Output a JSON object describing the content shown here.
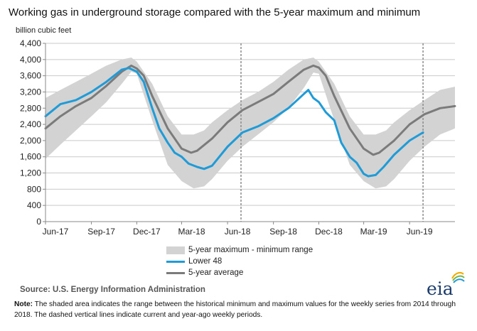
{
  "title": "Working gas in underground  storage compared with the 5-year maximum and minimum",
  "source": "Source:  U.S. Energy Information Administration",
  "note_label": "Note:",
  "note_text": " The shaded area indicates the range between the historical minimum and maximum values for the weekly series from 2014 through 2018. The dashed vertical lines indicate current and year-ago weekly periods.",
  "logo_text": "eia",
  "colors": {
    "band": "#d3d3d3",
    "lower48": "#1f9bd7",
    "average": "#7b7b7b",
    "grid": "#c9c9c9",
    "axis": "#8a8a8a"
  },
  "chart_data": {
    "type": "area",
    "title": "Working gas in underground  storage compared with the 5-year maximum and minimum",
    "ylabel": "billion cubic feet",
    "xlabel": "",
    "ylim": [
      0,
      4400
    ],
    "yticks": [
      0,
      400,
      800,
      1200,
      1600,
      2000,
      2400,
      2800,
      3200,
      3600,
      4000,
      4400
    ],
    "ytick_labels": [
      "0",
      "400",
      "800",
      "1,200",
      "1,600",
      "2,000",
      "2,400",
      "2,800",
      "3,200",
      "3,600",
      "4,000",
      "4,400"
    ],
    "x_domain": [
      "2017-06-01",
      "2019-08-31"
    ],
    "xticks": [
      {
        "date": "2017-06-01",
        "label": "Jun-17"
      },
      {
        "date": "2017-09-01",
        "label": "Sep-17"
      },
      {
        "date": "2017-12-01",
        "label": "Dec-17"
      },
      {
        "date": "2018-03-01",
        "label": "Mar-18"
      },
      {
        "date": "2018-06-01",
        "label": "Jun-18"
      },
      {
        "date": "2018-09-01",
        "label": "Sep-18"
      },
      {
        "date": "2018-12-01",
        "label": "Dec-18"
      },
      {
        "date": "2019-03-01",
        "label": "Mar-19"
      },
      {
        "date": "2019-06-01",
        "label": "Jun-19"
      }
    ],
    "grid": true,
    "legend_position": "bottom",
    "vlines": [
      {
        "date": "2018-06-28",
        "style": "dashed"
      },
      {
        "date": "2019-06-28",
        "style": "dashed"
      }
    ],
    "series": [
      {
        "name": "5-year maximum - minimum range",
        "type": "band",
        "x": [
          "2017-06-01",
          "2017-07-01",
          "2017-08-01",
          "2017-09-01",
          "2017-10-01",
          "2017-11-01",
          "2017-11-20",
          "2017-12-01",
          "2018-01-01",
          "2018-02-01",
          "2018-03-01",
          "2018-03-25",
          "2018-04-15",
          "2018-05-01",
          "2018-06-01",
          "2018-07-01",
          "2018-08-01",
          "2018-09-01",
          "2018-10-01",
          "2018-11-01",
          "2018-11-20",
          "2018-12-01",
          "2019-01-01",
          "2019-02-01",
          "2019-03-01",
          "2019-03-25",
          "2019-04-15",
          "2019-05-01",
          "2019-06-01",
          "2019-07-01",
          "2019-08-01",
          "2019-08-31"
        ],
        "lower": [
          1550,
          1900,
          2250,
          2600,
          2950,
          3400,
          3700,
          3650,
          2500,
          1400,
          1000,
          820,
          870,
          1050,
          1500,
          1850,
          2150,
          2450,
          2800,
          3300,
          3680,
          3650,
          2500,
          1400,
          1000,
          820,
          870,
          1050,
          1500,
          1850,
          2150,
          2300
        ],
        "upper": [
          3050,
          3250,
          3450,
          3650,
          3850,
          4000,
          4050,
          3950,
          3400,
          2600,
          2150,
          2150,
          2250,
          2450,
          2750,
          3000,
          3200,
          3450,
          3750,
          4000,
          4050,
          3950,
          3400,
          2600,
          2150,
          2150,
          2250,
          2450,
          2750,
          3000,
          3250,
          3330
        ]
      },
      {
        "name": "Lower 48",
        "type": "line",
        "x": [
          "2017-06-01",
          "2017-07-01",
          "2017-08-01",
          "2017-09-01",
          "2017-10-01",
          "2017-11-01",
          "2017-11-15",
          "2017-12-01",
          "2017-12-15",
          "2018-01-01",
          "2018-01-15",
          "2018-02-01",
          "2018-02-15",
          "2018-03-01",
          "2018-03-15",
          "2018-04-01",
          "2018-04-15",
          "2018-05-01",
          "2018-06-01",
          "2018-07-01",
          "2018-08-01",
          "2018-09-01",
          "2018-10-01",
          "2018-11-01",
          "2018-11-10",
          "2018-11-20",
          "2018-12-01",
          "2018-12-15",
          "2019-01-01",
          "2019-01-15",
          "2019-02-01",
          "2019-02-15",
          "2019-03-01",
          "2019-03-10",
          "2019-03-25",
          "2019-04-10",
          "2019-05-01",
          "2019-06-01",
          "2019-06-28"
        ],
        "values": [
          2600,
          2900,
          3000,
          3200,
          3450,
          3750,
          3790,
          3700,
          3450,
          2800,
          2300,
          1950,
          1700,
          1600,
          1430,
          1350,
          1300,
          1380,
          1850,
          2200,
          2350,
          2550,
          2800,
          3150,
          3250,
          3050,
          2950,
          2700,
          2500,
          1950,
          1600,
          1450,
          1180,
          1120,
          1150,
          1350,
          1650,
          2000,
          2200
        ]
      },
      {
        "name": "5-year average",
        "type": "line",
        "x": [
          "2017-06-01",
          "2017-07-01",
          "2017-08-01",
          "2017-09-01",
          "2017-10-01",
          "2017-11-01",
          "2017-11-20",
          "2017-12-01",
          "2017-12-15",
          "2018-01-01",
          "2018-02-01",
          "2018-03-01",
          "2018-03-20",
          "2018-04-01",
          "2018-05-01",
          "2018-06-01",
          "2018-07-01",
          "2018-08-01",
          "2018-09-01",
          "2018-10-01",
          "2018-11-01",
          "2018-11-20",
          "2018-12-01",
          "2018-12-15",
          "2019-01-01",
          "2019-02-01",
          "2019-03-01",
          "2019-03-20",
          "2019-04-01",
          "2019-05-01",
          "2019-06-01",
          "2019-07-01",
          "2019-08-01",
          "2019-08-31"
        ],
        "values": [
          2300,
          2600,
          2850,
          3050,
          3350,
          3700,
          3850,
          3780,
          3600,
          3100,
          2300,
          1800,
          1700,
          1750,
          2050,
          2450,
          2750,
          2950,
          3150,
          3450,
          3750,
          3850,
          3800,
          3600,
          3100,
          2300,
          1800,
          1650,
          1700,
          2000,
          2400,
          2650,
          2800,
          2850
        ]
      }
    ]
  },
  "legend": [
    {
      "label": "5-year maximum - minimum range",
      "kind": "band"
    },
    {
      "label": "Lower 48",
      "kind": "line-blue"
    },
    {
      "label": "5-year average",
      "kind": "line-gray"
    }
  ]
}
